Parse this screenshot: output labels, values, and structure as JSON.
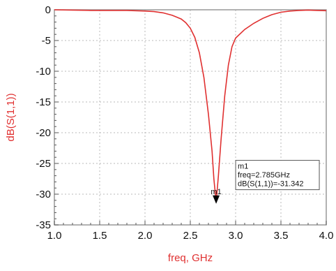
{
  "chart_data": {
    "type": "line",
    "xlabel": "freq, GHz",
    "ylabel": "dB(S(1,1))",
    "xlim": [
      1.0,
      4.0
    ],
    "ylim": [
      -35,
      0
    ],
    "xticks": [
      "1.0",
      "1.5",
      "2.0",
      "2.5",
      "3.0",
      "3.5",
      "4.0"
    ],
    "yticks": [
      "0",
      "-5",
      "-10",
      "-15",
      "-20",
      "-25",
      "-30",
      "-35"
    ],
    "grid": true,
    "series_color": "#e03030",
    "label_color": "#e03030",
    "series": [
      {
        "x": [
          1.0,
          1.2,
          1.4,
          1.6,
          1.8,
          2.0,
          2.1,
          2.2,
          2.3,
          2.4,
          2.45,
          2.5,
          2.55,
          2.6,
          2.65,
          2.7,
          2.74,
          2.76,
          2.785,
          2.81,
          2.84,
          2.88,
          2.92,
          2.96,
          3.0,
          3.1,
          3.2,
          3.3,
          3.4,
          3.5,
          3.6,
          3.7,
          3.8,
          3.9,
          4.0
        ],
        "y": [
          0.0,
          -0.05,
          -0.1,
          -0.1,
          -0.1,
          -0.2,
          -0.3,
          -0.5,
          -0.9,
          -1.5,
          -2.1,
          -3.0,
          -4.5,
          -7.0,
          -11.0,
          -17.0,
          -23.0,
          -27.5,
          -31.3,
          -27.0,
          -21.0,
          -14.0,
          -9.0,
          -6.0,
          -4.6,
          -3.2,
          -2.2,
          -1.4,
          -0.8,
          -0.4,
          -0.2,
          -0.1,
          -0.05,
          -0.1,
          -0.15
        ]
      }
    ]
  },
  "marker": {
    "id": "m1",
    "x": 2.785,
    "y": -31.342,
    "lines": [
      "m1",
      "freq=2.785GHz",
      "dB(S(1,1))=-31.342"
    ]
  }
}
